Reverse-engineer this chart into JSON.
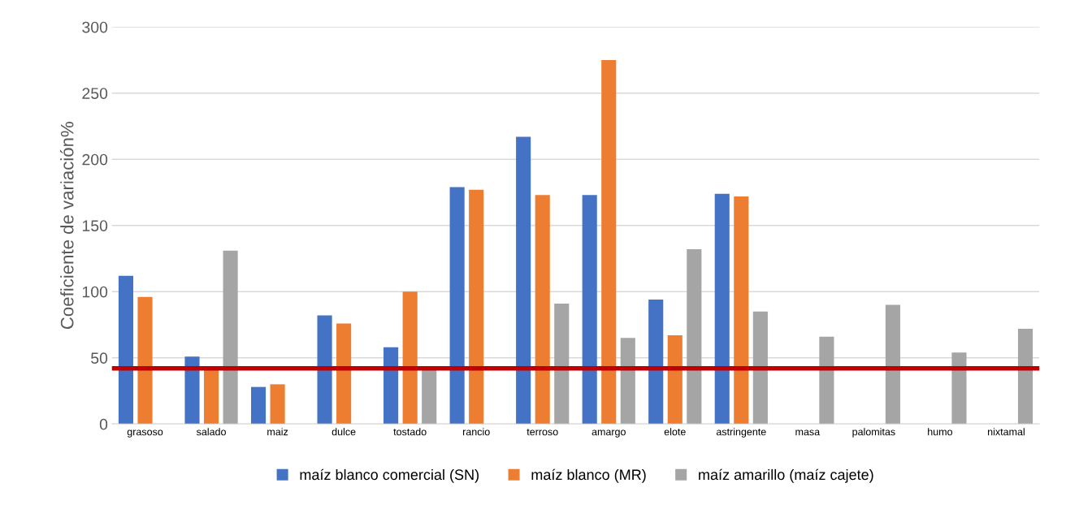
{
  "chart_data": {
    "type": "bar",
    "ylabel": "Coeficiente de variación%",
    "categories": [
      "grasoso",
      "salado",
      "maiz",
      "dulce",
      "tostado",
      "rancio",
      "terroso",
      "amargo",
      "elote",
      "astringente",
      "masa",
      "palomitas",
      "humo",
      "nixtamal"
    ],
    "series": [
      {
        "name": "maíz blanco comercial (SN)",
        "color": "#4472c4",
        "values": [
          112,
          51,
          28,
          82,
          58,
          179,
          217,
          173,
          94,
          174,
          null,
          null,
          null,
          null
        ]
      },
      {
        "name": "maíz blanco (MR)",
        "color": "#ed7d31",
        "values": [
          96,
          41,
          30,
          76,
          100,
          177,
          173,
          275,
          67,
          172,
          null,
          null,
          null,
          null
        ]
      },
      {
        "name": "maíz amarillo (maíz cajete)",
        "color": "#a5a5a5",
        "values": [
          null,
          131,
          null,
          null,
          41,
          null,
          91,
          65,
          132,
          85,
          66,
          90,
          54,
          72
        ]
      }
    ],
    "ylim": [
      0,
      300
    ],
    "yticks": [
      0,
      50,
      100,
      150,
      200,
      250,
      300
    ],
    "grid": "y",
    "legend": "bottom",
    "ref_lines": [
      {
        "axis": "y",
        "value": 42,
        "color": "#c00000",
        "line_style": "solid"
      }
    ]
  }
}
